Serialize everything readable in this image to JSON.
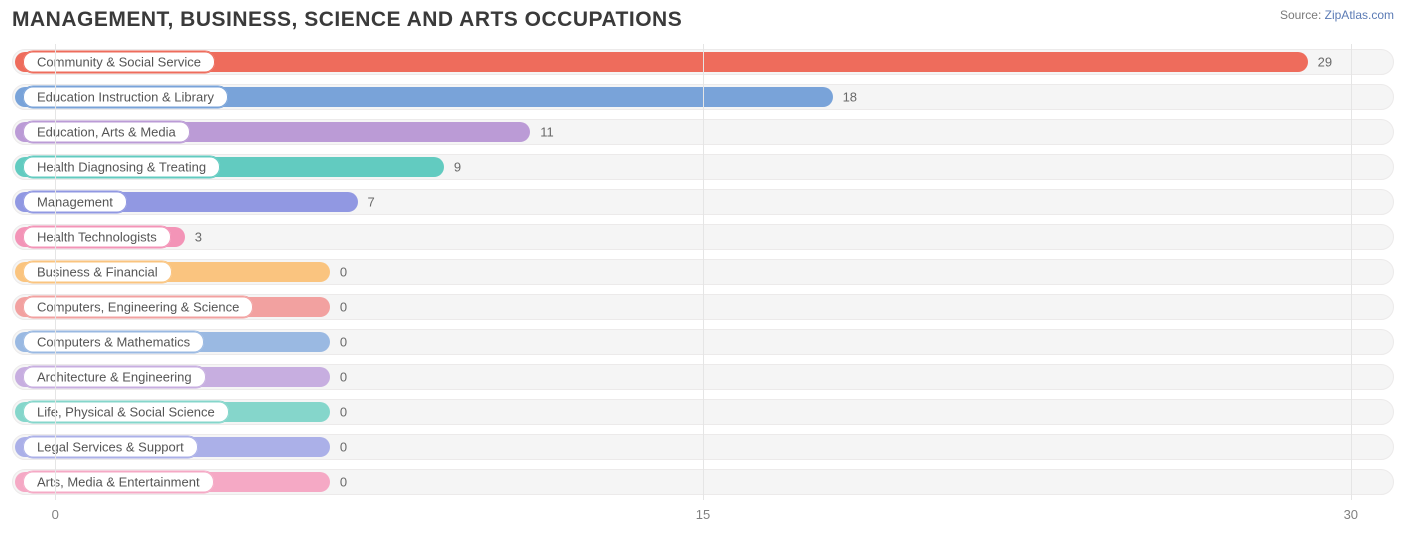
{
  "title": "MANAGEMENT, BUSINESS, SCIENCE AND ARTS OCCUPATIONS",
  "source_prefix": "Source: ",
  "source_link": "ZipAtlas.com",
  "chart": {
    "type": "bar",
    "orientation": "horizontal",
    "x_min": -1,
    "x_max": 31,
    "x_ticks": [
      0,
      15,
      30
    ],
    "grid_color": "#e5e5e5",
    "track_bg": "#f5f5f5",
    "track_border": "#eceaea",
    "background_color": "#ffffff",
    "title_color": "#3a3a3a",
    "axis_label_color": "#808080",
    "value_label_color": "#696969",
    "pill_text_color": "#555555",
    "title_fontsize": 21,
    "label_fontsize": 13,
    "bar_radius": 11,
    "rows": [
      {
        "label": "Community & Social Service",
        "value": 29,
        "color": "#ee6c5c"
      },
      {
        "label": "Education Instruction & Library",
        "value": 18,
        "color": "#79a3d9"
      },
      {
        "label": "Education, Arts & Media",
        "value": 11,
        "color": "#bb9bd6"
      },
      {
        "label": "Health Diagnosing & Treating",
        "value": 9,
        "color": "#62cbc0"
      },
      {
        "label": "Management",
        "value": 7,
        "color": "#9198e2"
      },
      {
        "label": "Health Technologists",
        "value": 3,
        "color": "#f394b7"
      },
      {
        "label": "Business & Financial",
        "value": 0,
        "color": "#fac47f"
      },
      {
        "label": "Computers, Engineering & Science",
        "value": 0,
        "color": "#f2a1a0"
      },
      {
        "label": "Computers & Mathematics",
        "value": 0,
        "color": "#9ab9e2"
      },
      {
        "label": "Architecture & Engineering",
        "value": 0,
        "color": "#c7aee0"
      },
      {
        "label": "Life, Physical & Social Science",
        "value": 0,
        "color": "#85d6cb"
      },
      {
        "label": "Legal Services & Support",
        "value": 0,
        "color": "#abb0e8"
      },
      {
        "label": "Arts, Media & Entertainment",
        "value": 0,
        "color": "#f5a9c5"
      }
    ]
  }
}
